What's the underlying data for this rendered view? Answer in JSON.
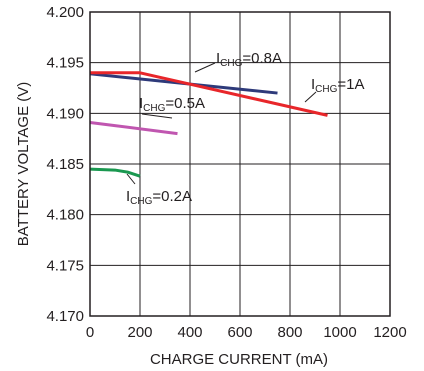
{
  "chart_data": {
    "type": "line",
    "title": "",
    "xlabel": "CHARGE CURRENT (mA)",
    "ylabel": "BATTERY VOLTAGE (V)",
    "xlim": [
      0,
      1200
    ],
    "ylim": [
      4.17,
      4.2
    ],
    "x_ticks": [
      "0",
      "200",
      "400",
      "600",
      "800",
      "1000",
      "1200"
    ],
    "y_ticks": [
      "4.170",
      "4.175",
      "4.180",
      "4.185",
      "4.190",
      "4.195",
      "4.200"
    ],
    "x_tick_values": [
      0,
      200,
      400,
      600,
      800,
      1000,
      1200
    ],
    "y_tick_values": [
      4.17,
      4.175,
      4.18,
      4.185,
      4.19,
      4.195,
      4.2
    ],
    "grid": true,
    "series": [
      {
        "id": "s02",
        "color": "#1a9850",
        "label_main": "I",
        "label_sub": "CHG",
        "label_rest": "=0.2A",
        "points": [
          [
            0,
            4.1845
          ],
          [
            100,
            4.1844
          ],
          [
            150,
            4.1842
          ],
          [
            200,
            4.1838
          ]
        ]
      },
      {
        "id": "s05",
        "color": "#c056b0",
        "label_main": "I",
        "label_sub": "CHG",
        "label_rest": "=0.5A",
        "points": [
          [
            0,
            4.1891
          ],
          [
            350,
            4.188
          ]
        ]
      },
      {
        "id": "s08",
        "color": "#2e3a7a",
        "label_main": "I",
        "label_sub": "CHG",
        "label_rest": "=0.8A",
        "points": [
          [
            0,
            4.1939
          ],
          [
            750,
            4.192
          ]
        ]
      },
      {
        "id": "s1",
        "color": "#e8262a",
        "label_main": "I",
        "label_sub": "CHG",
        "label_rest": "=1A",
        "points": [
          [
            0,
            4.194
          ],
          [
            200,
            4.194
          ],
          [
            950,
            4.1898
          ]
        ]
      }
    ]
  }
}
